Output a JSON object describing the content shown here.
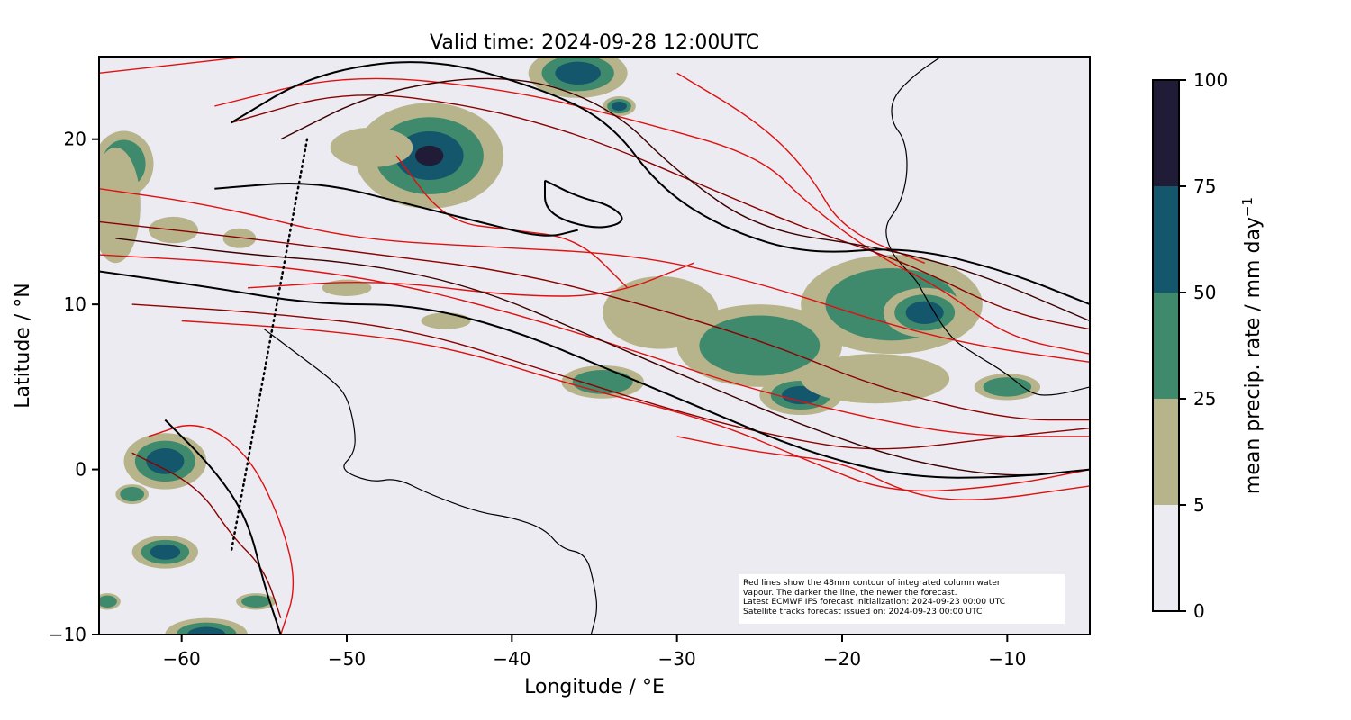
{
  "title": "Valid time: 2024-09-28 12:00UTC",
  "map": {
    "xlabel": "Longitude / °E",
    "ylabel": "Latitude / °N",
    "xlim": [
      -65,
      -5
    ],
    "ylim": [
      -10,
      25
    ],
    "xticks": [
      -60,
      -50,
      -40,
      -30,
      -20,
      -10
    ],
    "yticks": [
      -10,
      0,
      10,
      20
    ],
    "xtick_labels": [
      "−60",
      "−50",
      "−40",
      "−30",
      "−20",
      "−10"
    ],
    "ytick_labels": [
      "−10",
      "0",
      "10",
      "20"
    ],
    "background_color": "#ecebf1"
  },
  "colorbar": {
    "label": "mean precip. rate / mm day",
    "label_sup": "−1",
    "levels": [
      0,
      5,
      25,
      50,
      75,
      100
    ],
    "tick_labels": [
      "0",
      "5",
      "25",
      "50",
      "75",
      "100"
    ],
    "colors": [
      "#ecebf1",
      "#b7b48c",
      "#3f8a6c",
      "#14566b",
      "#201c37"
    ]
  },
  "note": {
    "lines": [
      "Red lines show the 48mm contour of integrated column water",
      "vapour. The darker the line, the newer the forecast.",
      "Latest ECMWF IFS forecast initialization: 2024-09-23 00:00 UTC",
      "Satellite tracks forecast issued on: 2024-09-23 00:00 UTC"
    ]
  },
  "satellite_track": {
    "points": [
      [
        -52.4,
        20
      ],
      [
        -57,
        -5
      ]
    ]
  },
  "precip_cells": [
    {
      "lon": -45,
      "lat": 19,
      "rx": 4.5,
      "ry": 3.2,
      "level": 75
    },
    {
      "lon": -36,
      "lat": 24,
      "rx": 3,
      "ry": 1.5,
      "level": 50
    },
    {
      "lon": -33.5,
      "lat": 22,
      "rx": 1,
      "ry": 0.6,
      "level": 50
    },
    {
      "lon": -48.5,
      "lat": 19.5,
      "rx": 2.5,
      "ry": 1.2,
      "level": 5
    },
    {
      "lon": -63.5,
      "lat": 18.5,
      "rx": 1.8,
      "ry": 2,
      "level": 25
    },
    {
      "lon": -64,
      "lat": 16,
      "rx": 1.5,
      "ry": 3.5,
      "level": 5
    },
    {
      "lon": -60.5,
      "lat": 14.5,
      "rx": 1.5,
      "ry": 0.8,
      "level": 5
    },
    {
      "lon": -56.5,
      "lat": 14,
      "rx": 1,
      "ry": 0.6,
      "level": 5
    },
    {
      "lon": -50,
      "lat": 11,
      "rx": 1.5,
      "ry": 0.5,
      "level": 5
    },
    {
      "lon": -44,
      "lat": 9,
      "rx": 1.5,
      "ry": 0.5,
      "level": 5
    },
    {
      "lon": -34.5,
      "lat": 5.3,
      "rx": 2.5,
      "ry": 1,
      "level": 25
    },
    {
      "lon": -31,
      "lat": 9.5,
      "rx": 3.5,
      "ry": 2.2,
      "level": 5
    },
    {
      "lon": -25,
      "lat": 7.5,
      "rx": 5,
      "ry": 2.5,
      "level": 25
    },
    {
      "lon": -22.5,
      "lat": 4.5,
      "rx": 2.5,
      "ry": 1.2,
      "level": 50
    },
    {
      "lon": -17,
      "lat": 10,
      "rx": 5.5,
      "ry": 3,
      "level": 25
    },
    {
      "lon": -15,
      "lat": 9.5,
      "rx": 2.5,
      "ry": 1.5,
      "level": 50
    },
    {
      "lon": -18,
      "lat": 5.5,
      "rx": 4.5,
      "ry": 1.5,
      "level": 5
    },
    {
      "lon": -10,
      "lat": 5,
      "rx": 2,
      "ry": 0.8,
      "level": 25
    },
    {
      "lon": -61,
      "lat": 0.5,
      "rx": 2.5,
      "ry": 1.7,
      "level": 50
    },
    {
      "lon": -63,
      "lat": -1.5,
      "rx": 1,
      "ry": 0.6,
      "level": 25
    },
    {
      "lon": -61,
      "lat": -5,
      "rx": 2,
      "ry": 1,
      "level": 50
    },
    {
      "lon": -58.5,
      "lat": -10,
      "rx": 2.5,
      "ry": 1,
      "level": 50
    },
    {
      "lon": -55.5,
      "lat": -8,
      "rx": 1.2,
      "ry": 0.5,
      "level": 25
    },
    {
      "lon": -64.5,
      "lat": -8,
      "rx": 0.8,
      "ry": 0.5,
      "level": 25
    }
  ],
  "contour_paths": [
    {
      "color": "#e01010",
      "pts": [
        [
          -65,
          17
        ],
        [
          -58,
          16
        ],
        [
          -50,
          14
        ],
        [
          -42,
          13.5
        ],
        [
          -32,
          13
        ],
        [
          -24,
          11
        ],
        [
          -18,
          9
        ],
        [
          -12,
          7.5
        ],
        [
          -5,
          6.5
        ]
      ]
    },
    {
      "color": "#e01010",
      "pts": [
        [
          -65,
          13
        ],
        [
          -56,
          12.5
        ],
        [
          -48,
          11.5
        ],
        [
          -40,
          9.5
        ],
        [
          -32,
          7
        ],
        [
          -26,
          5
        ],
        [
          -18,
          3
        ],
        [
          -12,
          2
        ],
        [
          -5,
          2
        ]
      ]
    },
    {
      "color": "#e01010",
      "pts": [
        [
          -60,
          9
        ],
        [
          -52,
          8.5
        ],
        [
          -44,
          7.5
        ],
        [
          -36,
          5
        ],
        [
          -28,
          3
        ],
        [
          -22,
          0.5
        ],
        [
          -17,
          -1.5
        ],
        [
          -10,
          -1
        ],
        [
          -5,
          0
        ]
      ]
    },
    {
      "color": "#e01010",
      "pts": [
        [
          -56,
          11
        ],
        [
          -48,
          11.5
        ],
        [
          -40,
          10.5
        ],
        [
          -34,
          10.5
        ],
        [
          -29,
          12.5
        ]
      ]
    },
    {
      "color": "#e01010",
      "pts": [
        [
          -58,
          22
        ],
        [
          -50,
          24
        ],
        [
          -40,
          23
        ],
        [
          -32,
          21
        ],
        [
          -25,
          19
        ],
        [
          -22,
          16
        ],
        [
          -18,
          13
        ],
        [
          -14,
          11
        ],
        [
          -10,
          8
        ],
        [
          -5,
          7
        ]
      ]
    },
    {
      "color": "#e01010",
      "pts": [
        [
          -65,
          24
        ],
        [
          -56,
          25
        ]
      ]
    },
    {
      "color": "#e01010",
      "pts": [
        [
          -62,
          2
        ],
        [
          -59,
          3
        ],
        [
          -56,
          1
        ],
        [
          -54,
          -3
        ],
        [
          -53,
          -7
        ],
        [
          -54,
          -10
        ]
      ]
    },
    {
      "color": "#e01010",
      "pts": [
        [
          -47,
          19
        ],
        [
          -44,
          15
        ],
        [
          -40,
          14.5
        ],
        [
          -36,
          14
        ],
        [
          -33,
          11
        ]
      ]
    },
    {
      "color": "#e01010",
      "pts": [
        [
          -30,
          24
        ],
        [
          -25,
          21
        ],
        [
          -22,
          18
        ],
        [
          -20,
          14.5
        ],
        [
          -15,
          12.5
        ]
      ]
    },
    {
      "color": "#e01010",
      "pts": [
        [
          -30,
          2
        ],
        [
          -25,
          1
        ],
        [
          -20,
          0.5
        ],
        [
          -16,
          -1.5
        ],
        [
          -12,
          -2
        ],
        [
          -5,
          -1
        ]
      ]
    },
    {
      "color": "#8b0000",
      "pts": [
        [
          -65,
          15
        ],
        [
          -56,
          14
        ],
        [
          -48,
          13
        ],
        [
          -40,
          12
        ],
        [
          -32,
          10
        ],
        [
          -24,
          7.5
        ],
        [
          -18,
          5
        ],
        [
          -10,
          3
        ],
        [
          -5,
          3
        ]
      ]
    },
    {
      "color": "#8b0000",
      "pts": [
        [
          -63,
          10
        ],
        [
          -55,
          9.5
        ],
        [
          -46,
          8.5
        ],
        [
          -38,
          6
        ],
        [
          -30,
          3.5
        ],
        [
          -24,
          2
        ],
        [
          -18,
          1
        ],
        [
          -10,
          2
        ],
        [
          -5,
          2.5
        ]
      ]
    },
    {
      "color": "#8b0000",
      "pts": [
        [
          -57,
          21
        ],
        [
          -50,
          23
        ],
        [
          -42,
          22
        ],
        [
          -35,
          20
        ],
        [
          -28,
          17
        ],
        [
          -22,
          14.5
        ],
        [
          -16,
          12.5
        ],
        [
          -10,
          9.5
        ],
        [
          -5,
          8.5
        ]
      ]
    },
    {
      "color": "#8b0000",
      "pts": [
        [
          -63,
          1
        ],
        [
          -59,
          -1
        ],
        [
          -57,
          -4
        ],
        [
          -55,
          -6
        ],
        [
          -54,
          -9
        ]
      ]
    },
    {
      "color": "#3a0000",
      "pts": [
        [
          -64,
          14
        ],
        [
          -56,
          13
        ],
        [
          -49,
          12.5
        ],
        [
          -42,
          11
        ],
        [
          -35,
          8
        ],
        [
          -28,
          5
        ],
        [
          -22,
          2.5
        ],
        [
          -16,
          0.5
        ],
        [
          -10,
          -0.5
        ],
        [
          -5,
          0
        ]
      ]
    },
    {
      "color": "#3a0000",
      "pts": [
        [
          -54,
          20
        ],
        [
          -48,
          23
        ],
        [
          -40,
          24
        ],
        [
          -34,
          22
        ],
        [
          -30,
          18
        ],
        [
          -25,
          14.5
        ],
        [
          -18,
          13.5
        ],
        [
          -12,
          12
        ],
        [
          -5,
          9
        ]
      ]
    },
    {
      "color": "#000000",
      "pts": [
        [
          -65,
          12
        ],
        [
          -58,
          11
        ],
        [
          -52,
          10
        ],
        [
          -46,
          10
        ],
        [
          -40,
          8.5
        ],
        [
          -34,
          6
        ],
        [
          -28,
          3.5
        ],
        [
          -22,
          1
        ],
        [
          -16,
          -0.5
        ],
        [
          -10,
          -0.5
        ],
        [
          -5,
          0
        ]
      ]
    },
    {
      "color": "#000000",
      "pts": [
        [
          -58,
          17
        ],
        [
          -52,
          17.5
        ],
        [
          -46,
          16
        ],
        [
          -42,
          15
        ],
        [
          -38,
          14
        ],
        [
          -36,
          14.5
        ]
      ]
    },
    {
      "color": "#000000",
      "pts": [
        [
          -57,
          21
        ],
        [
          -52,
          24
        ],
        [
          -45,
          25
        ],
        [
          -38,
          23
        ],
        [
          -34,
          21
        ],
        [
          -31,
          17
        ],
        [
          -27,
          14.5
        ],
        [
          -22,
          13
        ],
        [
          -16,
          13.5
        ],
        [
          -10,
          12
        ],
        [
          -5,
          10
        ]
      ]
    },
    {
      "color": "#000000",
      "pts": [
        [
          -61,
          3
        ],
        [
          -58,
          0
        ],
        [
          -56,
          -3
        ],
        [
          -55,
          -7
        ],
        [
          -54,
          -10
        ]
      ]
    },
    {
      "color": "#000000",
      "pts": [
        [
          -38,
          17.5
        ],
        [
          -36,
          16.5
        ],
        [
          -34,
          16
        ],
        [
          -33,
          15
        ],
        [
          -35,
          14.5
        ],
        [
          -38,
          15.5
        ],
        [
          -38,
          17.5
        ]
      ]
    }
  ],
  "coast_paths": [
    [
      [
        -55,
        8.5
      ],
      [
        -53,
        7
      ],
      [
        -51,
        5.5
      ],
      [
        -50,
        4.5
      ],
      [
        -49.5,
        2.5
      ],
      [
        -49.5,
        1
      ],
      [
        -50.5,
        0
      ],
      [
        -48.5,
        -0.8
      ],
      [
        -47,
        -0.5
      ],
      [
        -45,
        -1.5
      ],
      [
        -42,
        -2.6
      ],
      [
        -40,
        -2.9
      ],
      [
        -38,
        -3.6
      ],
      [
        -37,
        -4.8
      ],
      [
        -35.5,
        -5.1
      ],
      [
        -35,
        -7
      ],
      [
        -34.8,
        -8.5
      ],
      [
        -35.2,
        -10
      ]
    ],
    [
      [
        -5,
        5
      ],
      [
        -7,
        4.5
      ],
      [
        -8.5,
        4.5
      ],
      [
        -10,
        5.8
      ],
      [
        -12,
        7
      ],
      [
        -13.5,
        8
      ],
      [
        -15,
        10.5
      ],
      [
        -15.5,
        11.5
      ],
      [
        -17,
        13
      ],
      [
        -17.5,
        14.7
      ],
      [
        -16.5,
        16
      ],
      [
        -16,
        18
      ],
      [
        -16.2,
        20
      ],
      [
        -17,
        21
      ],
      [
        -17,
        22.5
      ],
      [
        -15.5,
        24
      ],
      [
        -14,
        25
      ]
    ]
  ]
}
